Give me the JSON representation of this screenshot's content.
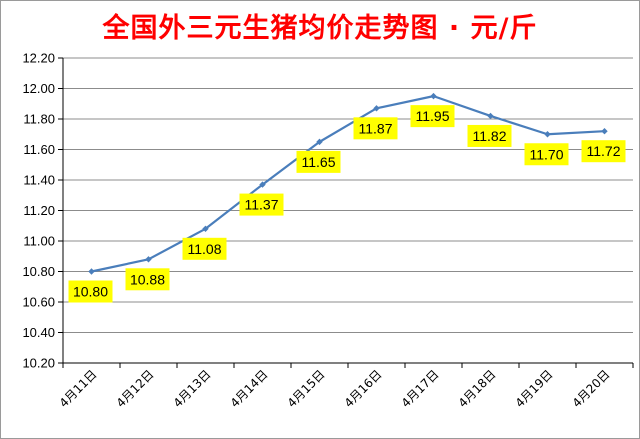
{
  "chart_data": {
    "type": "line",
    "title": "全国外三元生猪均价走势图 · 元/斤",
    "categories": [
      "4月11日",
      "4月12日",
      "4月13日",
      "4月14日",
      "4月15日",
      "4月16日",
      "4月17日",
      "4月18日",
      "4月19日",
      "4月20日"
    ],
    "series": [
      {
        "values": [
          10.8,
          10.88,
          11.08,
          11.37,
          11.65,
          11.87,
          11.95,
          11.82,
          11.7,
          11.72
        ],
        "labels": [
          "10.80",
          "10.88",
          "11.08",
          "11.37",
          "11.65",
          "11.87",
          "11.95",
          "11.82",
          "11.70",
          "11.72"
        ]
      }
    ],
    "y_ticks": [
      "10.20",
      "10.40",
      "10.60",
      "10.80",
      "11.00",
      "11.20",
      "11.40",
      "11.60",
      "11.80",
      "12.00",
      "12.20"
    ],
    "ylim": [
      10.2,
      12.2
    ],
    "grid": true,
    "legend": "none",
    "colors": {
      "line": "#4a7ebb",
      "label_bg": "#ffff00",
      "title": "#ff0000",
      "grid": "#8c8c8c"
    }
  }
}
